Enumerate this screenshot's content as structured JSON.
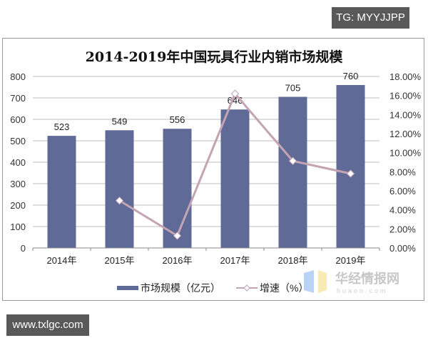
{
  "watermarks": {
    "top_right": "TG: MYYJJPP",
    "bottom_left": "www.txlgc.com",
    "logo_cn": "华经情报网",
    "logo_en": "huaon.com"
  },
  "colors": {
    "bar": "#5f6b96",
    "line": "#c4a3b3",
    "grid": "#bfbfbf"
  },
  "chart_data": {
    "type": "bar+line",
    "title": "2014-2019年中国玩具行业内销市场规模",
    "categories": [
      "2014年",
      "2015年",
      "2016年",
      "2017年",
      "2018年",
      "2019年"
    ],
    "series": [
      {
        "name": "市场规模（亿元）",
        "type": "bar",
        "axis": "left",
        "values": [
          523,
          549,
          556,
          646,
          705,
          760
        ]
      },
      {
        "name": "增速（%）",
        "type": "line",
        "axis": "right",
        "values": [
          null,
          4.97,
          1.28,
          16.19,
          9.13,
          7.8
        ]
      }
    ],
    "left_axis": {
      "ylim": [
        0,
        800
      ],
      "ticks": [
        "0",
        "100",
        "200",
        "300",
        "400",
        "500",
        "600",
        "700",
        "800"
      ]
    },
    "right_axis": {
      "ylim": [
        0,
        18
      ],
      "ticks": [
        "0.00%",
        "2.00%",
        "4.00%",
        "6.00%",
        "8.00%",
        "10.00%",
        "12.00%",
        "14.00%",
        "16.00%",
        "18.00%"
      ]
    },
    "grid": true,
    "legend_position": "bottom"
  }
}
